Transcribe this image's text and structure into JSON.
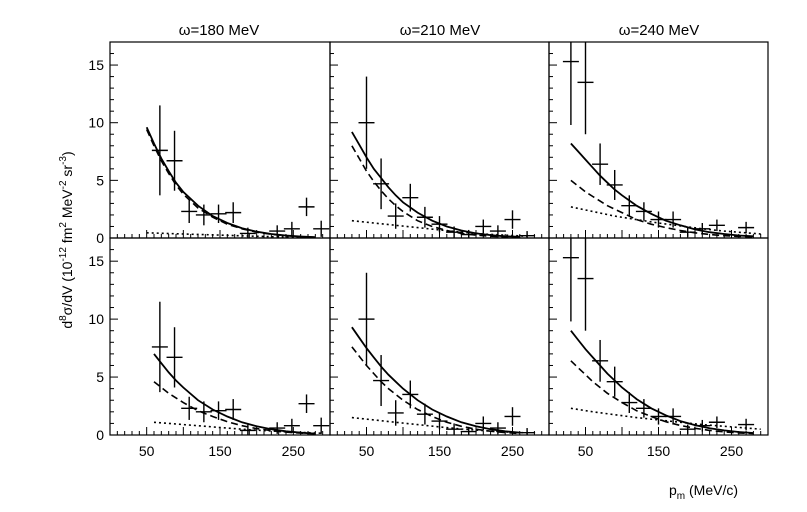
{
  "figure": {
    "ylabel": {
      "d": "d",
      "sup8": "8",
      "mid": "σ/dV (10",
      "supm12": "-12",
      "fm": " fm",
      "sup2": "2",
      "mev": " MeV",
      "supm2": "-2",
      "sr": " sr",
      "supm3": "-3",
      "close": ")"
    },
    "xlabel": {
      "p": "p",
      "sub": "m",
      "unit": " (MeV/c)"
    },
    "column_titles": [
      "ω=180 MeV",
      "ω=210 MeV",
      "ω=240 MeV"
    ],
    "yticks": [
      0,
      5,
      10,
      15
    ],
    "col_xticks": [
      [
        50,
        150,
        250
      ],
      [
        50,
        150,
        250
      ],
      [
        50,
        150,
        250
      ]
    ]
  },
  "chart_data": [
    {
      "type": "scatter",
      "title": "ω=180 MeV",
      "row": 1,
      "col": 1,
      "xlabel": "p_m (MeV/c)",
      "ylabel": "d^8σ/dV (10^-12 fm^2 MeV^-2 sr^-3)",
      "xlim": [
        0,
        300
      ],
      "ylim": [
        0,
        17
      ],
      "points": [
        {
          "x": 68,
          "y": 7.6,
          "yerr": 3.9
        },
        {
          "x": 88,
          "y": 6.7,
          "yerr": 2.6
        },
        {
          "x": 108,
          "y": 2.3,
          "yerr": 1.0
        },
        {
          "x": 128,
          "y": 2.0,
          "yerr": 0.9
        },
        {
          "x": 148,
          "y": 2.1,
          "yerr": 0.8
        },
        {
          "x": 168,
          "y": 2.2,
          "yerr": 0.9
        },
        {
          "x": 188,
          "y": 0.4,
          "yerr": 0.5
        },
        {
          "x": 228,
          "y": 0.6,
          "yerr": 0.5
        },
        {
          "x": 248,
          "y": 0.8,
          "yerr": 0.6
        },
        {
          "x": 268,
          "y": 2.7,
          "yerr": 0.8
        },
        {
          "x": 288,
          "y": 0.8,
          "yerr": 0.7
        }
      ],
      "curves": [
        {
          "name": "solid",
          "style": "solid",
          "x": [
            50,
            60,
            70,
            80,
            90,
            100,
            120,
            140,
            160,
            180,
            200,
            220,
            240,
            260,
            280
          ],
          "y": [
            9.6,
            8.2,
            6.9,
            5.8,
            4.8,
            4.0,
            2.8,
            1.9,
            1.3,
            0.85,
            0.55,
            0.35,
            0.22,
            0.13,
            0.08
          ]
        },
        {
          "name": "dashed",
          "style": "dashed",
          "x": [
            50,
            60,
            70,
            80,
            90,
            100,
            120,
            140,
            160,
            180,
            200,
            220,
            240,
            260,
            280
          ],
          "y": [
            9.4,
            8.0,
            6.7,
            5.6,
            4.6,
            3.8,
            2.6,
            1.8,
            1.2,
            0.8,
            0.5,
            0.32,
            0.2,
            0.12,
            0.07
          ]
        },
        {
          "name": "dotted",
          "style": "dotted",
          "x": [
            50,
            100,
            150,
            200,
            250,
            280
          ],
          "y": [
            0.45,
            0.35,
            0.25,
            0.15,
            0.08,
            0.05
          ]
        }
      ]
    },
    {
      "type": "scatter",
      "title": "ω=210 MeV",
      "row": 1,
      "col": 2,
      "xlim": [
        0,
        300
      ],
      "ylim": [
        0,
        17
      ],
      "points": [
        {
          "x": 50,
          "y": 10.0,
          "yerr": 4.0
        },
        {
          "x": 70,
          "y": 4.7,
          "yerr": 2.2
        },
        {
          "x": 90,
          "y": 1.9,
          "yerr": 1.1
        },
        {
          "x": 110,
          "y": 3.5,
          "yerr": 1.2
        },
        {
          "x": 130,
          "y": 1.8,
          "yerr": 0.9
        },
        {
          "x": 150,
          "y": 1.2,
          "yerr": 0.7
        },
        {
          "x": 170,
          "y": 0.5,
          "yerr": 0.5
        },
        {
          "x": 190,
          "y": 0.3,
          "yerr": 0.4
        },
        {
          "x": 210,
          "y": 1.0,
          "yerr": 0.6
        },
        {
          "x": 230,
          "y": 0.6,
          "yerr": 0.5
        },
        {
          "x": 250,
          "y": 1.6,
          "yerr": 0.8
        },
        {
          "x": 270,
          "y": 0.2,
          "yerr": 0.4
        }
      ],
      "curves": [
        {
          "name": "solid",
          "style": "solid",
          "x": [
            30,
            40,
            50,
            60,
            70,
            80,
            90,
            100,
            120,
            140,
            160,
            180,
            200,
            220,
            240,
            260
          ],
          "y": [
            9.2,
            8.1,
            7.0,
            6.0,
            5.2,
            4.4,
            3.7,
            3.1,
            2.2,
            1.5,
            1.0,
            0.65,
            0.4,
            0.25,
            0.15,
            0.1
          ]
        },
        {
          "name": "dashed",
          "style": "dashed",
          "x": [
            30,
            40,
            50,
            60,
            70,
            80,
            90,
            100,
            120,
            140,
            160,
            180,
            200,
            220,
            240,
            260
          ],
          "y": [
            8.0,
            6.9,
            5.8,
            4.9,
            4.1,
            3.4,
            2.8,
            2.3,
            1.5,
            1.0,
            0.65,
            0.4,
            0.25,
            0.15,
            0.1,
            0.06
          ]
        },
        {
          "name": "dotted",
          "style": "dotted",
          "x": [
            30,
            60,
            90,
            120,
            150,
            180,
            210,
            240,
            270
          ],
          "y": [
            1.5,
            1.3,
            1.1,
            0.9,
            0.7,
            0.5,
            0.35,
            0.25,
            0.15
          ]
        }
      ]
    },
    {
      "type": "scatter",
      "title": "ω=240 MeV",
      "row": 1,
      "col": 3,
      "xlim": [
        0,
        300
      ],
      "ylim": [
        0,
        17
      ],
      "points": [
        {
          "x": 30,
          "y": 15.3,
          "yerr": 5.5
        },
        {
          "x": 50,
          "y": 13.5,
          "yerr": 4.5
        },
        {
          "x": 70,
          "y": 6.4,
          "yerr": 1.8
        },
        {
          "x": 90,
          "y": 4.6,
          "yerr": 1.3
        },
        {
          "x": 110,
          "y": 2.8,
          "yerr": 0.9
        },
        {
          "x": 130,
          "y": 2.3,
          "yerr": 0.8
        },
        {
          "x": 150,
          "y": 1.6,
          "yerr": 0.7
        },
        {
          "x": 170,
          "y": 1.6,
          "yerr": 0.7
        },
        {
          "x": 190,
          "y": 0.5,
          "yerr": 0.4
        },
        {
          "x": 210,
          "y": 0.8,
          "yerr": 0.5
        },
        {
          "x": 230,
          "y": 1.1,
          "yerr": 0.5
        },
        {
          "x": 270,
          "y": 0.9,
          "yerr": 0.5
        }
      ],
      "curves": [
        {
          "name": "solid",
          "style": "solid",
          "x": [
            30,
            40,
            50,
            60,
            70,
            80,
            90,
            100,
            120,
            140,
            160,
            180,
            200,
            220,
            240,
            260,
            280
          ],
          "y": [
            8.2,
            7.5,
            6.8,
            6.1,
            5.4,
            4.8,
            4.2,
            3.7,
            2.8,
            2.1,
            1.5,
            1.1,
            0.75,
            0.5,
            0.35,
            0.22,
            0.15
          ]
        },
        {
          "name": "dashed",
          "style": "dashed",
          "x": [
            30,
            40,
            50,
            60,
            70,
            80,
            90,
            100,
            120,
            140,
            160,
            180,
            200,
            220,
            240,
            260,
            280
          ],
          "y": [
            5.0,
            4.5,
            4.0,
            3.6,
            3.2,
            2.8,
            2.5,
            2.2,
            1.6,
            1.2,
            0.9,
            0.65,
            0.45,
            0.3,
            0.2,
            0.14,
            0.1
          ]
        },
        {
          "name": "dotted",
          "style": "dotted",
          "x": [
            30,
            60,
            90,
            120,
            150,
            180,
            210,
            240,
            270,
            290
          ],
          "y": [
            2.7,
            2.3,
            1.9,
            1.6,
            1.3,
            1.05,
            0.8,
            0.6,
            0.45,
            0.35
          ]
        }
      ]
    },
    {
      "type": "scatter",
      "title": "",
      "row": 2,
      "col": 1,
      "xlim": [
        0,
        300
      ],
      "ylim": [
        0,
        17
      ],
      "points": [
        {
          "x": 68,
          "y": 7.6,
          "yerr": 3.9
        },
        {
          "x": 88,
          "y": 6.7,
          "yerr": 2.6
        },
        {
          "x": 108,
          "y": 2.3,
          "yerr": 1.0
        },
        {
          "x": 128,
          "y": 2.0,
          "yerr": 0.9
        },
        {
          "x": 148,
          "y": 2.1,
          "yerr": 0.8
        },
        {
          "x": 168,
          "y": 2.2,
          "yerr": 0.9
        },
        {
          "x": 188,
          "y": 0.4,
          "yerr": 0.5
        },
        {
          "x": 228,
          "y": 0.6,
          "yerr": 0.5
        },
        {
          "x": 248,
          "y": 0.8,
          "yerr": 0.6
        },
        {
          "x": 268,
          "y": 2.7,
          "yerr": 0.8
        },
        {
          "x": 288,
          "y": 0.8,
          "yerr": 0.7
        }
      ],
      "curves": [
        {
          "name": "solid",
          "style": "solid",
          "x": [
            60,
            70,
            80,
            90,
            100,
            120,
            140,
            160,
            180,
            200,
            220,
            240,
            260,
            280
          ],
          "y": [
            7.0,
            6.2,
            5.4,
            4.7,
            4.1,
            3.0,
            2.2,
            1.6,
            1.1,
            0.75,
            0.5,
            0.32,
            0.2,
            0.12
          ]
        },
        {
          "name": "dashed",
          "style": "dashed",
          "x": [
            60,
            70,
            80,
            90,
            100,
            120,
            140,
            160,
            180,
            200,
            220,
            240,
            260,
            280
          ],
          "y": [
            4.6,
            4.1,
            3.6,
            3.2,
            2.8,
            2.1,
            1.6,
            1.15,
            0.8,
            0.55,
            0.38,
            0.25,
            0.16,
            0.1
          ]
        },
        {
          "name": "dotted",
          "style": "dotted",
          "x": [
            60,
            90,
            120,
            150,
            180,
            210,
            240,
            270,
            290
          ],
          "y": [
            1.1,
            0.95,
            0.8,
            0.65,
            0.5,
            0.38,
            0.28,
            0.2,
            0.15
          ]
        }
      ]
    },
    {
      "type": "scatter",
      "title": "",
      "row": 2,
      "col": 2,
      "xlim": [
        0,
        300
      ],
      "ylim": [
        0,
        17
      ],
      "points": [
        {
          "x": 50,
          "y": 10.0,
          "yerr": 4.0
        },
        {
          "x": 70,
          "y": 4.7,
          "yerr": 2.2
        },
        {
          "x": 90,
          "y": 1.9,
          "yerr": 1.1
        },
        {
          "x": 110,
          "y": 3.5,
          "yerr": 1.2
        },
        {
          "x": 130,
          "y": 1.8,
          "yerr": 0.9
        },
        {
          "x": 150,
          "y": 1.2,
          "yerr": 0.7
        },
        {
          "x": 170,
          "y": 0.5,
          "yerr": 0.5
        },
        {
          "x": 190,
          "y": 0.3,
          "yerr": 0.4
        },
        {
          "x": 210,
          "y": 1.0,
          "yerr": 0.6
        },
        {
          "x": 230,
          "y": 0.6,
          "yerr": 0.5
        },
        {
          "x": 250,
          "y": 1.6,
          "yerr": 0.8
        },
        {
          "x": 270,
          "y": 0.2,
          "yerr": 0.4
        }
      ],
      "curves": [
        {
          "name": "solid",
          "style": "solid",
          "x": [
            30,
            40,
            50,
            60,
            70,
            80,
            90,
            100,
            120,
            140,
            160,
            180,
            200,
            220,
            240,
            260
          ],
          "y": [
            9.3,
            8.4,
            7.5,
            6.7,
            5.9,
            5.2,
            4.6,
            4.0,
            3.0,
            2.2,
            1.6,
            1.1,
            0.75,
            0.5,
            0.32,
            0.2
          ]
        },
        {
          "name": "dashed",
          "style": "dashed",
          "x": [
            30,
            40,
            50,
            60,
            70,
            80,
            90,
            100,
            120,
            140,
            160,
            180,
            200,
            220,
            240,
            260
          ],
          "y": [
            7.6,
            6.8,
            6.0,
            5.3,
            4.6,
            4.0,
            3.5,
            3.0,
            2.2,
            1.6,
            1.1,
            0.75,
            0.5,
            0.33,
            0.21,
            0.13
          ]
        },
        {
          "name": "dotted",
          "style": "dotted",
          "x": [
            30,
            60,
            90,
            120,
            150,
            180,
            210,
            240,
            270
          ],
          "y": [
            1.5,
            1.3,
            1.1,
            0.9,
            0.7,
            0.52,
            0.38,
            0.27,
            0.18
          ]
        }
      ]
    },
    {
      "type": "scatter",
      "title": "",
      "row": 2,
      "col": 3,
      "xlim": [
        0,
        300
      ],
      "ylim": [
        0,
        17
      ],
      "points": [
        {
          "x": 30,
          "y": 15.3,
          "yerr": 5.5
        },
        {
          "x": 50,
          "y": 13.5,
          "yerr": 4.5
        },
        {
          "x": 70,
          "y": 6.4,
          "yerr": 1.8
        },
        {
          "x": 90,
          "y": 4.6,
          "yerr": 1.3
        },
        {
          "x": 110,
          "y": 2.8,
          "yerr": 0.9
        },
        {
          "x": 130,
          "y": 2.3,
          "yerr": 0.8
        },
        {
          "x": 150,
          "y": 1.6,
          "yerr": 0.7
        },
        {
          "x": 170,
          "y": 1.6,
          "yerr": 0.7
        },
        {
          "x": 190,
          "y": 0.5,
          "yerr": 0.4
        },
        {
          "x": 210,
          "y": 0.8,
          "yerr": 0.5
        },
        {
          "x": 230,
          "y": 1.1,
          "yerr": 0.5
        },
        {
          "x": 270,
          "y": 0.9,
          "yerr": 0.5
        }
      ],
      "curves": [
        {
          "name": "solid",
          "style": "solid",
          "x": [
            30,
            40,
            50,
            60,
            70,
            80,
            90,
            100,
            120,
            140,
            160,
            180,
            200,
            220,
            240,
            260,
            280
          ],
          "y": [
            9.0,
            8.2,
            7.4,
            6.7,
            6.0,
            5.3,
            4.7,
            4.1,
            3.1,
            2.3,
            1.7,
            1.2,
            0.85,
            0.58,
            0.4,
            0.26,
            0.17
          ]
        },
        {
          "name": "dashed",
          "style": "dashed",
          "x": [
            30,
            40,
            50,
            60,
            70,
            80,
            90,
            100,
            120,
            140,
            160,
            180,
            200,
            220,
            240,
            260,
            280
          ],
          "y": [
            6.4,
            5.8,
            5.2,
            4.6,
            4.1,
            3.6,
            3.2,
            2.8,
            2.1,
            1.6,
            1.15,
            0.82,
            0.58,
            0.4,
            0.27,
            0.18,
            0.12
          ]
        },
        {
          "name": "dotted",
          "style": "dotted",
          "x": [
            30,
            60,
            90,
            120,
            150,
            180,
            210,
            240,
            270,
            290
          ],
          "y": [
            2.3,
            2.0,
            1.75,
            1.5,
            1.3,
            1.1,
            0.9,
            0.75,
            0.6,
            0.5
          ]
        }
      ]
    }
  ]
}
